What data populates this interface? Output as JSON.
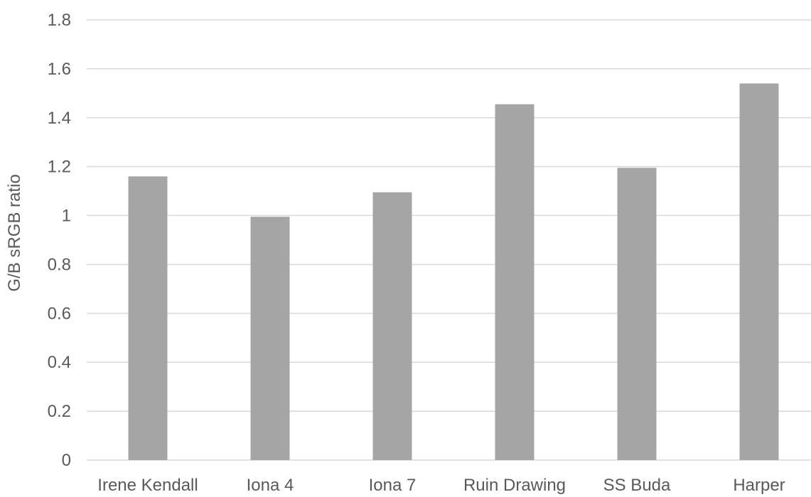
{
  "chart_data": {
    "type": "bar",
    "categories": [
      "Irene Kendall",
      "Iona 4",
      "Iona 7",
      "Ruin Drawing",
      "SS Buda",
      "Harper"
    ],
    "values": [
      1.16,
      0.995,
      1.095,
      1.455,
      1.195,
      1.54
    ],
    "title": "",
    "xlabel": "",
    "ylabel": "G/B sRGB ratio",
    "ylim": [
      0,
      1.8
    ],
    "yticks": [
      0,
      0.2,
      0.4,
      0.6,
      0.8,
      1,
      1.2,
      1.4,
      1.6,
      1.8
    ],
    "ytick_labels": [
      "0",
      "0.2",
      "0.4",
      "0.6",
      "0.8",
      "1",
      "1.2",
      "1.4",
      "1.6",
      "1.8"
    ],
    "grid": true,
    "legend": "none",
    "colors": {
      "bar": "#a5a5a5",
      "grid": "#d9d9d9",
      "text": "#595959"
    }
  }
}
